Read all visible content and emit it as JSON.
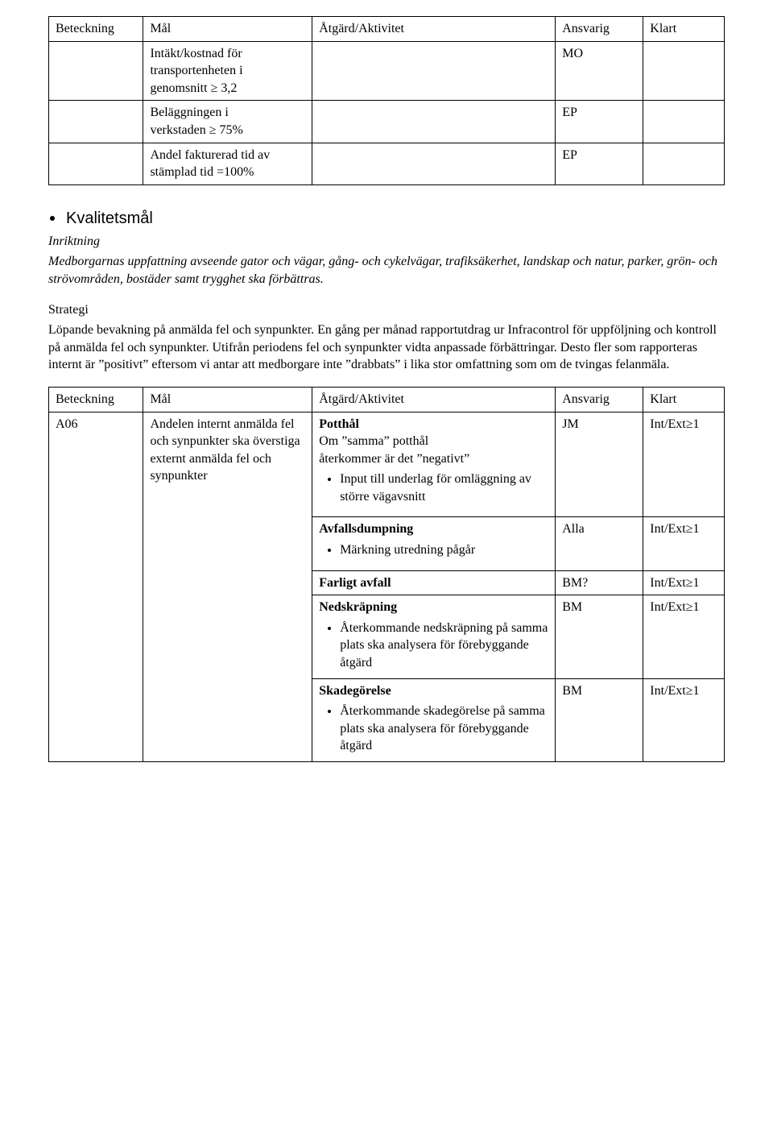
{
  "headers": {
    "bet": "Beteckning",
    "mal": "Mål",
    "atg": "Åtgärd/Aktivitet",
    "ans": "Ansvarig",
    "klart": "Klart"
  },
  "table1": {
    "r1": {
      "mal_l1": "Intäkt/kostnad för",
      "mal_l2": "transportenheten i",
      "mal_l3": "genomsnitt ≥ 3,2",
      "ans": "MO"
    },
    "r2": {
      "mal_l1": "Beläggningen i",
      "mal_l2": "verkstaden ≥ 75%",
      "ans": "EP"
    },
    "r3": {
      "mal_l1": "Andel fakturerad tid av",
      "mal_l2": "stämplad tid =100%",
      "ans": "EP"
    }
  },
  "section": {
    "title": "Kvalitetsmål",
    "inriktning_label": "Inriktning",
    "inriktning_text": "Medborgarnas uppfattning avseende gator och vägar, gång- och cykelvägar, trafiksäkerhet, landskap och natur, parker, grön- och strövområden, bostäder samt trygghet ska förbättras.",
    "strategi_label": "Strategi",
    "strategi_text": "Löpande bevakning på anmälda fel och synpunkter. En gång per månad rapportutdrag ur Infracontrol för uppföljning och kontroll på anmälda fel och synpunkter. Utifrån periodens fel och synpunkter vidta anpassade förbättringar. Desto fler som rapporteras internt är ”positivt” eftersom vi antar att medborgare inte ”drabbats” i lika stor omfattning som om de tvingas felanmäla."
  },
  "table2": {
    "bet": "A06",
    "mal": "Andelen internt anmälda fel och synpunkter ska överstiga externt anmälda fel och synpunkter",
    "r1": {
      "title": "Potthål",
      "line1": "Om ”samma” potthål",
      "line2": "återkommer är det ”negativt”",
      "bullet": "Input till underlag för omläggning av större vägavsnitt",
      "ans": "JM",
      "klart": "Int/Ext≥1"
    },
    "r2": {
      "title": "Avfallsdumpning",
      "bullet": "Märkning utredning pågår",
      "ans": "Alla",
      "klart": "Int/Ext≥1"
    },
    "r3": {
      "title": "Farligt avfall",
      "ans": "BM?",
      "klart": "Int/Ext≥1"
    },
    "r4": {
      "title": "Nedskräpning",
      "bullet": "Återkommande nedskräpning på samma plats ska analysera för förebyggande åtgärd",
      "ans": "BM",
      "klart": "Int/Ext≥1"
    },
    "r5": {
      "title": "Skadegörelse",
      "bullet": "Återkommande skadegörelse på samma plats ska analysera för förebyggande åtgärd",
      "ans": "BM",
      "klart": "Int/Ext≥1"
    }
  }
}
